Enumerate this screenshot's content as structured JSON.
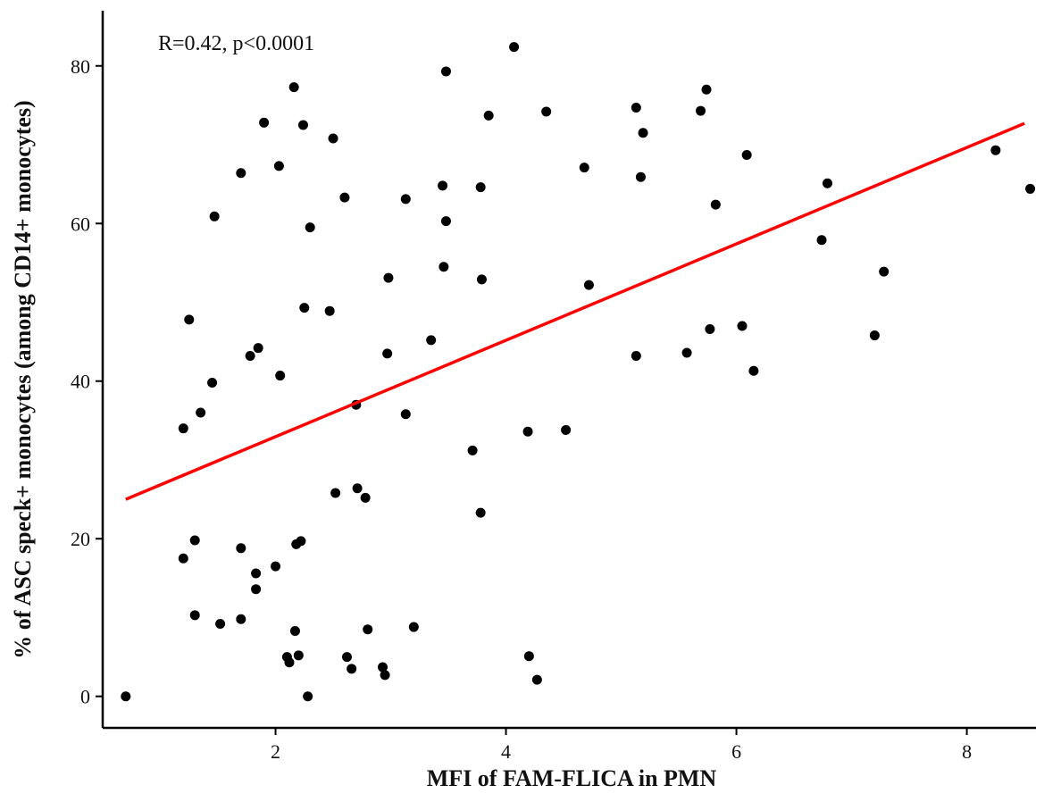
{
  "chart_data": {
    "type": "scatter",
    "title": "",
    "annotation": "R=0.42, p<0.0001",
    "xlabel": "MFI of FAM-FLICA in PMN",
    "ylabel": "% of ASC speck+ monocytes  (among CD14+ monocytes)",
    "xlim": [
      0.5,
      8.6
    ],
    "ylim": [
      -4,
      87
    ],
    "xticks": [
      2,
      4,
      6,
      8
    ],
    "yticks": [
      0,
      20,
      40,
      60,
      80
    ],
    "grid": false,
    "legend": "none",
    "point_color": "#000000",
    "fit_line": {
      "color": "#ff0000",
      "points": [
        [
          0.7,
          25.0
        ],
        [
          8.5,
          72.7
        ]
      ]
    },
    "points": [
      [
        0.7,
        0.0
      ],
      [
        1.2,
        34.0
      ],
      [
        1.2,
        17.5
      ],
      [
        1.25,
        47.8
      ],
      [
        1.3,
        19.8
      ],
      [
        1.3,
        10.3
      ],
      [
        1.35,
        36.0
      ],
      [
        1.45,
        39.8
      ],
      [
        1.47,
        60.9
      ],
      [
        1.52,
        9.2
      ],
      [
        1.7,
        66.4
      ],
      [
        1.7,
        18.8
      ],
      [
        1.7,
        9.8
      ],
      [
        1.78,
        43.2
      ],
      [
        1.83,
        15.6
      ],
      [
        1.83,
        13.6
      ],
      [
        1.85,
        44.2
      ],
      [
        1.9,
        72.8
      ],
      [
        2.0,
        16.5
      ],
      [
        2.03,
        67.3
      ],
      [
        2.04,
        40.7
      ],
      [
        2.1,
        5.0
      ],
      [
        2.12,
        4.3
      ],
      [
        2.16,
        77.3
      ],
      [
        2.17,
        8.3
      ],
      [
        2.18,
        19.3
      ],
      [
        2.2,
        5.2
      ],
      [
        2.22,
        19.7
      ],
      [
        2.24,
        72.5
      ],
      [
        2.25,
        49.3
      ],
      [
        2.28,
        0.0
      ],
      [
        2.3,
        59.5
      ],
      [
        2.47,
        48.9
      ],
      [
        2.5,
        70.8
      ],
      [
        2.52,
        25.8
      ],
      [
        2.6,
        63.3
      ],
      [
        2.62,
        5.0
      ],
      [
        2.66,
        3.5
      ],
      [
        2.7,
        37.0
      ],
      [
        2.71,
        26.4
      ],
      [
        2.78,
        25.2
      ],
      [
        2.8,
        8.5
      ],
      [
        2.93,
        3.7
      ],
      [
        2.95,
        2.7
      ],
      [
        2.97,
        43.5
      ],
      [
        2.98,
        53.1
      ],
      [
        3.13,
        63.1
      ],
      [
        3.13,
        35.8
      ],
      [
        3.2,
        8.8
      ],
      [
        3.35,
        45.2
      ],
      [
        3.45,
        64.8
      ],
      [
        3.46,
        54.5
      ],
      [
        3.48,
        79.3
      ],
      [
        3.48,
        60.3
      ],
      [
        3.71,
        31.2
      ],
      [
        3.78,
        23.3
      ],
      [
        3.78,
        64.6
      ],
      [
        3.79,
        52.9
      ],
      [
        3.85,
        73.7
      ],
      [
        4.07,
        82.4
      ],
      [
        4.19,
        33.6
      ],
      [
        4.2,
        5.1
      ],
      [
        4.27,
        2.1
      ],
      [
        4.35,
        74.2
      ],
      [
        4.52,
        33.8
      ],
      [
        4.68,
        67.1
      ],
      [
        4.72,
        52.2
      ],
      [
        5.13,
        74.7
      ],
      [
        5.13,
        43.2
      ],
      [
        5.17,
        65.9
      ],
      [
        5.19,
        71.5
      ],
      [
        5.57,
        43.6
      ],
      [
        5.69,
        74.3
      ],
      [
        5.74,
        77.0
      ],
      [
        5.77,
        46.6
      ],
      [
        5.82,
        62.4
      ],
      [
        6.05,
        47.0
      ],
      [
        6.09,
        68.7
      ],
      [
        6.15,
        41.3
      ],
      [
        6.74,
        57.9
      ],
      [
        6.79,
        65.1
      ],
      [
        7.2,
        45.8
      ],
      [
        7.28,
        53.9
      ],
      [
        8.25,
        69.3
      ],
      [
        8.55,
        64.4
      ]
    ]
  }
}
